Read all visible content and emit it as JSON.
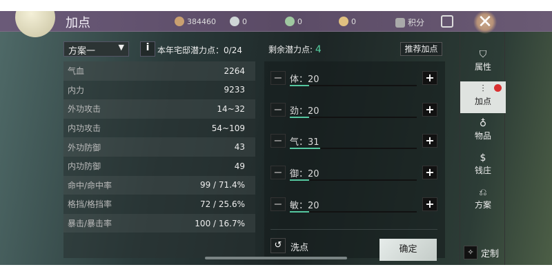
{
  "header": {
    "title": "加点",
    "currencies": [
      {
        "icon": "coin-icon",
        "value": "384460"
      },
      {
        "icon": "silver-ingot-icon",
        "value": "0"
      },
      {
        "icon": "jade-icon",
        "value": "0"
      },
      {
        "icon": "gold-ingot-icon",
        "value": "0"
      }
    ],
    "points_label": "积分"
  },
  "toolbar": {
    "plan_select": "方案一",
    "house_points_label": "本年宅邸潜力点：",
    "house_points": "0/24",
    "remaining_label": "剩余潜力点:",
    "remaining": "4",
    "recommend": "推荐加点"
  },
  "stats": [
    {
      "k": "气血",
      "v": "2264"
    },
    {
      "k": "内力",
      "v": "9233"
    },
    {
      "k": "外功攻击",
      "v": "14~32"
    },
    {
      "k": "内功攻击",
      "v": "54~109"
    },
    {
      "k": "外功防御",
      "v": "43"
    },
    {
      "k": "内功防御",
      "v": "49"
    },
    {
      "k": "命中/命中率",
      "v": "99 / 71.4%"
    },
    {
      "k": "格挡/格挡率",
      "v": "72 / 25.6%"
    },
    {
      "k": "暴击/暴击率",
      "v": "100 / 16.7%"
    }
  ],
  "attributes": [
    {
      "label": "体：20",
      "value": 20
    },
    {
      "label": "劲：20",
      "value": 20
    },
    {
      "label": "气：31",
      "value": 31
    },
    {
      "label": "御：20",
      "value": 20
    },
    {
      "label": "敏：20",
      "value": 20
    }
  ],
  "actions": {
    "reset": "洗点",
    "confirm": "确定"
  },
  "sidebar": [
    {
      "label": "属性",
      "icon": "attribute-icon"
    },
    {
      "label": "加点",
      "icon": "sliders-icon",
      "active": true,
      "badge": true
    },
    {
      "label": "物品",
      "icon": "bag-icon"
    },
    {
      "label": "钱庄",
      "icon": "money-bag-icon"
    },
    {
      "label": "方案",
      "icon": "scroll-icon"
    }
  ],
  "custom": "定制",
  "colors": {
    "accent": "#55c8a0",
    "header": "#5b4b66",
    "badge": "#d93030"
  }
}
